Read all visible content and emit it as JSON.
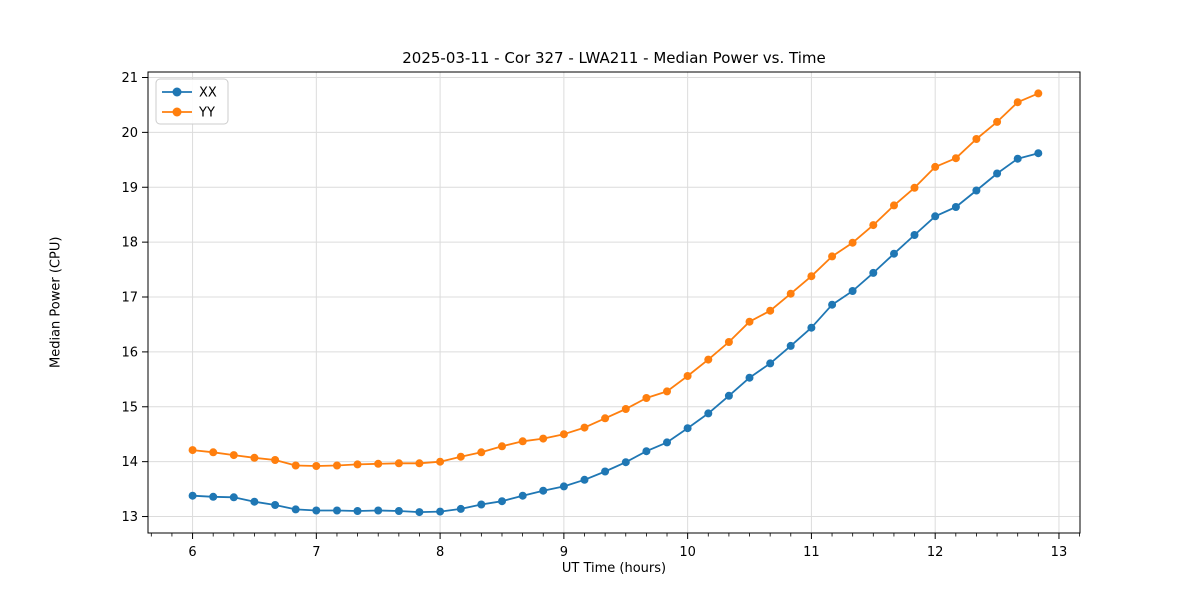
{
  "figure": {
    "title": "2025-03-11 - Cor 327 - LWA211 - Median Power vs. Time",
    "xlabel": "UT Time (hours)",
    "ylabel": "Median Power (CPU)"
  },
  "chart_data": {
    "type": "line",
    "title": "2025-03-11 - Cor 327 - LWA211 - Median Power vs. Time",
    "xlabel": "UT Time (hours)",
    "ylabel": "Median Power (CPU)",
    "xlim": [
      5.64,
      13.17
    ],
    "ylim": [
      12.7,
      21.1
    ],
    "xticks": [
      6,
      7,
      8,
      9,
      10,
      11,
      12,
      13
    ],
    "yticks": [
      13,
      14,
      15,
      16,
      17,
      18,
      19,
      20,
      21
    ],
    "grid": true,
    "grid_color": "#dcdcdc",
    "legend_position": "upper left",
    "marker": "circle",
    "x": [
      6.0,
      6.167,
      6.333,
      6.5,
      6.667,
      6.833,
      7.0,
      7.167,
      7.333,
      7.5,
      7.667,
      7.833,
      8.0,
      8.167,
      8.333,
      8.5,
      8.667,
      8.833,
      9.0,
      9.167,
      9.333,
      9.5,
      9.667,
      9.833,
      10.0,
      10.167,
      10.333,
      10.5,
      10.667,
      10.833,
      11.0,
      11.167,
      11.333,
      11.5,
      11.667,
      11.833,
      12.0,
      12.167,
      12.333,
      12.5,
      12.667,
      12.833
    ],
    "series": [
      {
        "name": "XX",
        "color": "#1f77b4",
        "values": [
          13.38,
          13.36,
          13.35,
          13.27,
          13.21,
          13.13,
          13.11,
          13.11,
          13.1,
          13.11,
          13.1,
          13.08,
          13.09,
          13.14,
          13.22,
          13.28,
          13.38,
          13.47,
          13.55,
          13.67,
          13.82,
          13.99,
          14.19,
          14.35,
          14.61,
          14.88,
          15.2,
          15.53,
          15.79,
          16.11,
          16.44,
          16.86,
          17.11,
          17.44,
          17.79,
          18.13,
          18.47,
          18.64,
          18.94,
          19.25,
          19.52,
          19.62
        ]
      },
      {
        "name": "YY",
        "color": "#ff7f0e",
        "values": [
          14.21,
          14.17,
          14.12,
          14.07,
          14.03,
          13.93,
          13.92,
          13.93,
          13.95,
          13.96,
          13.97,
          13.97,
          14.0,
          14.09,
          14.17,
          14.28,
          14.37,
          14.42,
          14.5,
          14.62,
          14.79,
          14.96,
          15.16,
          15.28,
          15.56,
          15.86,
          16.18,
          16.55,
          16.75,
          17.06,
          17.38,
          17.74,
          17.99,
          18.31,
          18.67,
          18.99,
          19.37,
          19.53,
          19.88,
          20.19,
          20.55,
          20.71
        ]
      }
    ]
  }
}
